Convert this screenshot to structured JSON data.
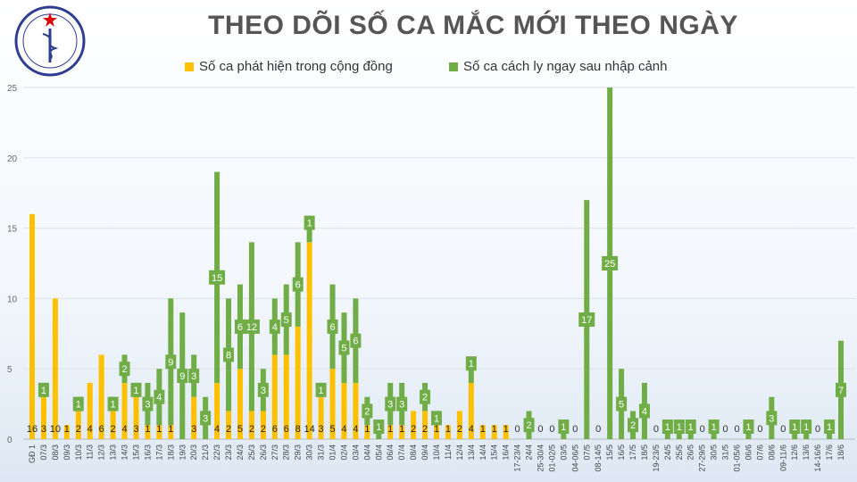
{
  "title": "THEO DÕI SỐ CA MẮC MỚI THEO NGÀY",
  "logo_text": "BỘ Y TẾ · MINISTRY OF HEALTH",
  "chart_data": {
    "type": "bar",
    "stacked": true,
    "title": "THEO DÕI SỐ CA MẮC MỚI THEO NGÀY",
    "xlabel": "",
    "ylabel": "",
    "ylim": [
      0,
      25
    ],
    "yticks": [
      0,
      5,
      10,
      15,
      20,
      25
    ],
    "grid": true,
    "legend": "top",
    "categories": [
      "GĐ 1",
      "07/3",
      "08/3",
      "09/3",
      "10/3",
      "11/3",
      "12/3",
      "13/3",
      "14/3",
      "15/3",
      "16/3",
      "17/3",
      "18/3",
      "19/3",
      "20/3",
      "21/3",
      "22/3",
      "23/3",
      "24/3",
      "25/3",
      "26/3",
      "27/3",
      "28/3",
      "29/3",
      "30/3",
      "31/3",
      "01/4",
      "02/4",
      "03/4",
      "04/4",
      "05/4",
      "06/4",
      "07/4",
      "08/4",
      "09/4",
      "10/4",
      "11/4",
      "12/4",
      "13/4",
      "14/4",
      "15/4",
      "16/4",
      "17-23/4",
      "24/4",
      "25-30/4",
      "01-02/5",
      "03/5",
      "04-06/5",
      "07/5",
      "08-14/5",
      "15/5",
      "16/5",
      "17/5",
      "18/5",
      "19-23/5",
      "24/5",
      "25/5",
      "26/5",
      "27-29/5",
      "30/5",
      "31/5",
      "01-05/6",
      "06/6",
      "07/6",
      "08/6",
      "09-11/6",
      "12/6",
      "13/6",
      "14-16/6",
      "17/6",
      "18/6"
    ],
    "series": [
      {
        "name": "Số ca phát hiện trong cộng đồng",
        "color": "#ffc000",
        "values": [
          16,
          3,
          10,
          1,
          2,
          4,
          6,
          2,
          4,
          3,
          1,
          1,
          1,
          0,
          3,
          0,
          4,
          2,
          5,
          2,
          2,
          6,
          6,
          8,
          14,
          3,
          5,
          4,
          4,
          1,
          0,
          1,
          1,
          2,
          2,
          1,
          1,
          2,
          4,
          1,
          1,
          1,
          0,
          0,
          0,
          0,
          0,
          0,
          0,
          0,
          0,
          0,
          0,
          0,
          0,
          0,
          0,
          0,
          0,
          0,
          0,
          0,
          0,
          0,
          0,
          0,
          0,
          0,
          0,
          0,
          0
        ]
      },
      {
        "name": "Số ca cách ly ngay sau nhập cảnh",
        "color": "#70ad47",
        "values": [
          0,
          1,
          0,
          0,
          1,
          0,
          0,
          1,
          2,
          1,
          3,
          4,
          9,
          9,
          3,
          3,
          15,
          8,
          6,
          12,
          3,
          4,
          5,
          6,
          1,
          1,
          6,
          5,
          6,
          2,
          1,
          3,
          3,
          0,
          2,
          1,
          0,
          0,
          1,
          0,
          0,
          0,
          0,
          2,
          0,
          0,
          1,
          0,
          17,
          0,
          25,
          5,
          2,
          4,
          0,
          1,
          1,
          1,
          0,
          1,
          0,
          0,
          1,
          0,
          3,
          0,
          1,
          1,
          0,
          1,
          7
        ]
      }
    ]
  }
}
